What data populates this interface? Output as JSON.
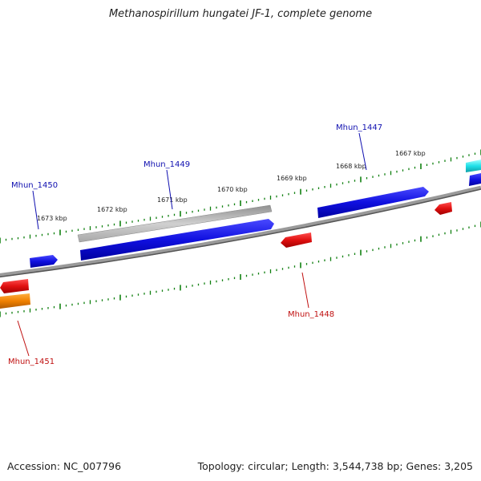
{
  "title": "Methanospirillum hungatei JF-1, complete genome",
  "footer": {
    "accession": "Accession: NC_007796",
    "summary": "Topology: circular; Length: 3,544,738 bp; Genes: 3,205"
  },
  "scale_labels": [
    "1673 kbp",
    "1672 kbp",
    "1671 kbp",
    "1670 kbp",
    "1669 kbp",
    "1668 kbp",
    "1667 kbp"
  ],
  "gene_labels": {
    "mhun_1447": "Mhun_1447",
    "mhun_1448": "Mhun_1448",
    "mhun_1449": "Mhun_1449",
    "mhun_1450": "Mhun_1450",
    "mhun_1451": "Mhun_1451"
  },
  "colors": {
    "forward_gene": "#1010e0",
    "reverse_gene": "#e01010",
    "pseudo_gene": "#b0b0b0",
    "orange_gene": "#f08000",
    "cyan_gene": "#20e0e8",
    "backbone": "#707070",
    "tick": "#108010",
    "fwd_label": "#1010b0",
    "rev_label": "#c01010"
  }
}
